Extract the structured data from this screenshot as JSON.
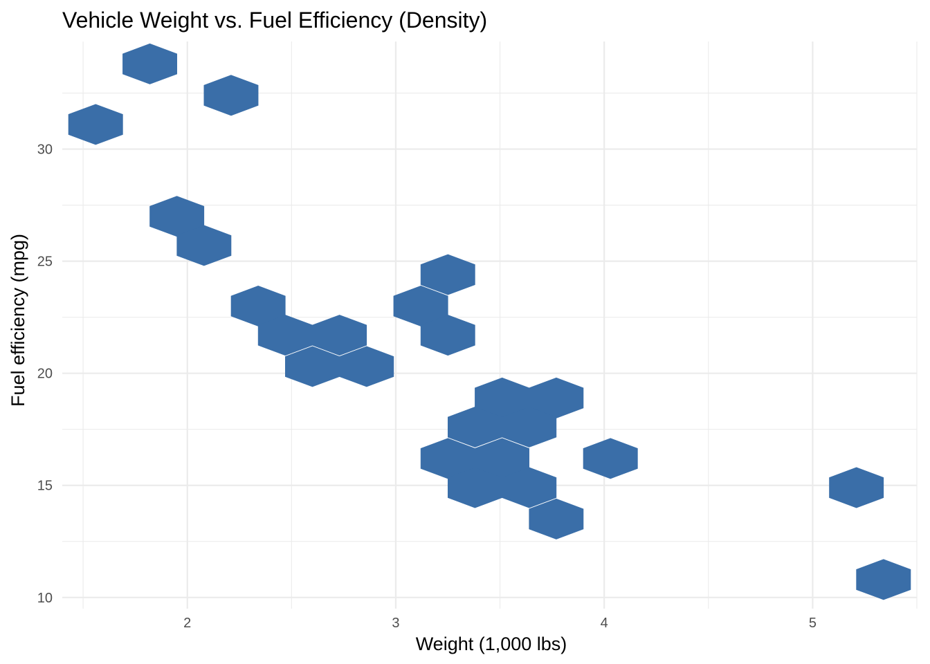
{
  "chart_data": {
    "type": "hexbin",
    "title": "Vehicle Weight vs. Fuel Efficiency (Density)",
    "xlabel": "Weight (1,000 lbs)",
    "ylabel": "Fuel efficiency (mpg)",
    "xlim": [
      1.4,
      5.5
    ],
    "ylim": [
      9.5,
      34.8
    ],
    "x_ticks": [
      2,
      3,
      4,
      5
    ],
    "y_ticks": [
      10,
      15,
      20,
      25,
      30
    ],
    "x_tick_labels": [
      "2",
      "3",
      "4",
      "5"
    ],
    "y_tick_labels": [
      "10",
      "15",
      "20",
      "25",
      "30"
    ],
    "grid": true,
    "fill_color": "#3A6EA8",
    "hex_half_width": 0.13,
    "hex_half_height": 0.9,
    "bins": [
      {
        "x": 1.82,
        "y": 33.8
      },
      {
        "x": 2.21,
        "y": 32.4
      },
      {
        "x": 1.56,
        "y": 31.1
      },
      {
        "x": 1.95,
        "y": 27.0
      },
      {
        "x": 2.08,
        "y": 25.7
      },
      {
        "x": 2.34,
        "y": 23.0
      },
      {
        "x": 3.25,
        "y": 24.4
      },
      {
        "x": 3.12,
        "y": 23.0
      },
      {
        "x": 2.47,
        "y": 21.7
      },
      {
        "x": 2.73,
        "y": 21.7
      },
      {
        "x": 3.25,
        "y": 21.7
      },
      {
        "x": 2.6,
        "y": 20.3
      },
      {
        "x": 2.86,
        "y": 20.3
      },
      {
        "x": 3.51,
        "y": 18.9
      },
      {
        "x": 3.77,
        "y": 18.9
      },
      {
        "x": 3.38,
        "y": 17.6
      },
      {
        "x": 3.64,
        "y": 17.6
      },
      {
        "x": 3.25,
        "y": 16.2
      },
      {
        "x": 3.51,
        "y": 16.2
      },
      {
        "x": 4.03,
        "y": 16.2
      },
      {
        "x": 3.38,
        "y": 14.9
      },
      {
        "x": 3.64,
        "y": 14.9
      },
      {
        "x": 5.21,
        "y": 14.9
      },
      {
        "x": 3.77,
        "y": 13.5
      },
      {
        "x": 5.34,
        "y": 10.8
      }
    ]
  }
}
